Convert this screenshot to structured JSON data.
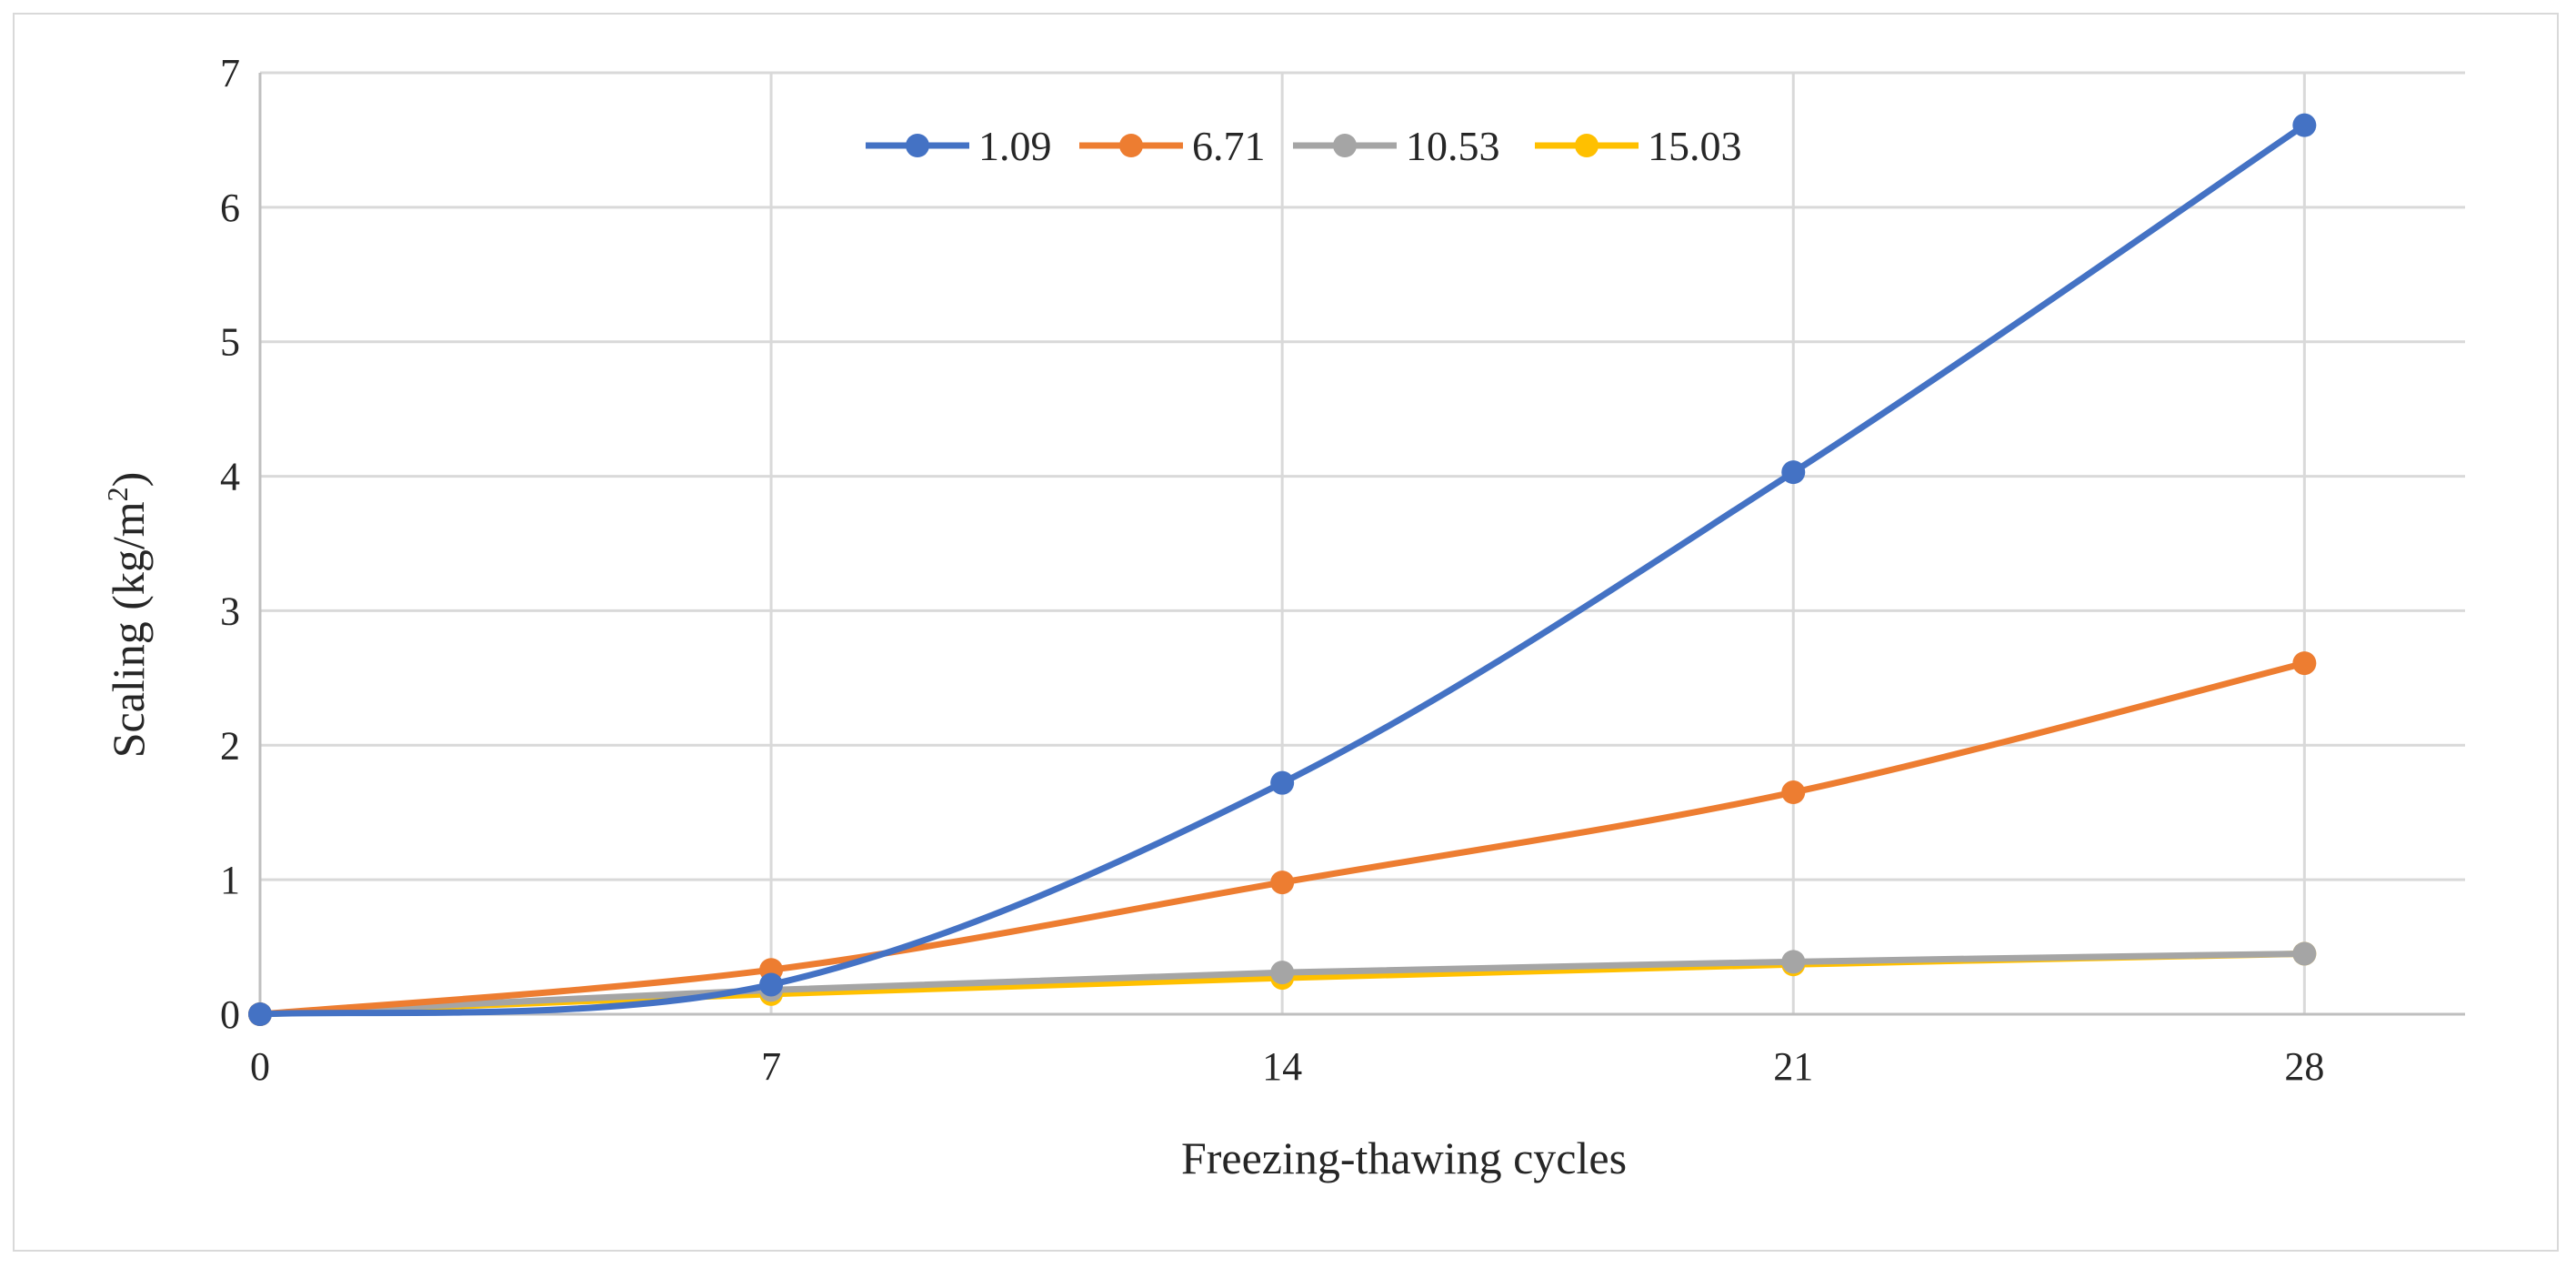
{
  "chart_data": {
    "type": "line",
    "title": "",
    "xlabel": "Freezing-thawing cycles",
    "ylabel_main": "Scaling (kg/m",
    "ylabel_sup": "2",
    "ylabel_close": ")",
    "x": [
      0,
      7,
      14,
      21,
      28
    ],
    "x_tick_labels": [
      "0",
      "7",
      "14",
      "21",
      "28"
    ],
    "xlim": [
      0,
      30.2
    ],
    "ylim": [
      0,
      7
    ],
    "y_ticks": [
      0,
      1,
      2,
      3,
      4,
      5,
      6,
      7
    ],
    "y_tick_labels": [
      "0",
      "1",
      "2",
      "3",
      "4",
      "5",
      "6",
      "7"
    ],
    "grid": true,
    "smooth": true,
    "legend_position": "top-center",
    "series": [
      {
        "name": "1.09",
        "color": "#4472C4",
        "values": [
          0,
          0.22,
          1.72,
          4.03,
          6.61
        ]
      },
      {
        "name": "6.71",
        "color": "#ED7D31",
        "values": [
          0,
          0.33,
          0.98,
          1.65,
          2.61
        ]
      },
      {
        "name": "10.53",
        "color": "#A5A5A5",
        "values": [
          0,
          0.18,
          0.31,
          0.39,
          0.45
        ]
      },
      {
        "name": "15.03",
        "color": "#FFC000",
        "values": [
          0,
          0.15,
          0.27,
          0.37,
          0.45
        ]
      }
    ]
  }
}
